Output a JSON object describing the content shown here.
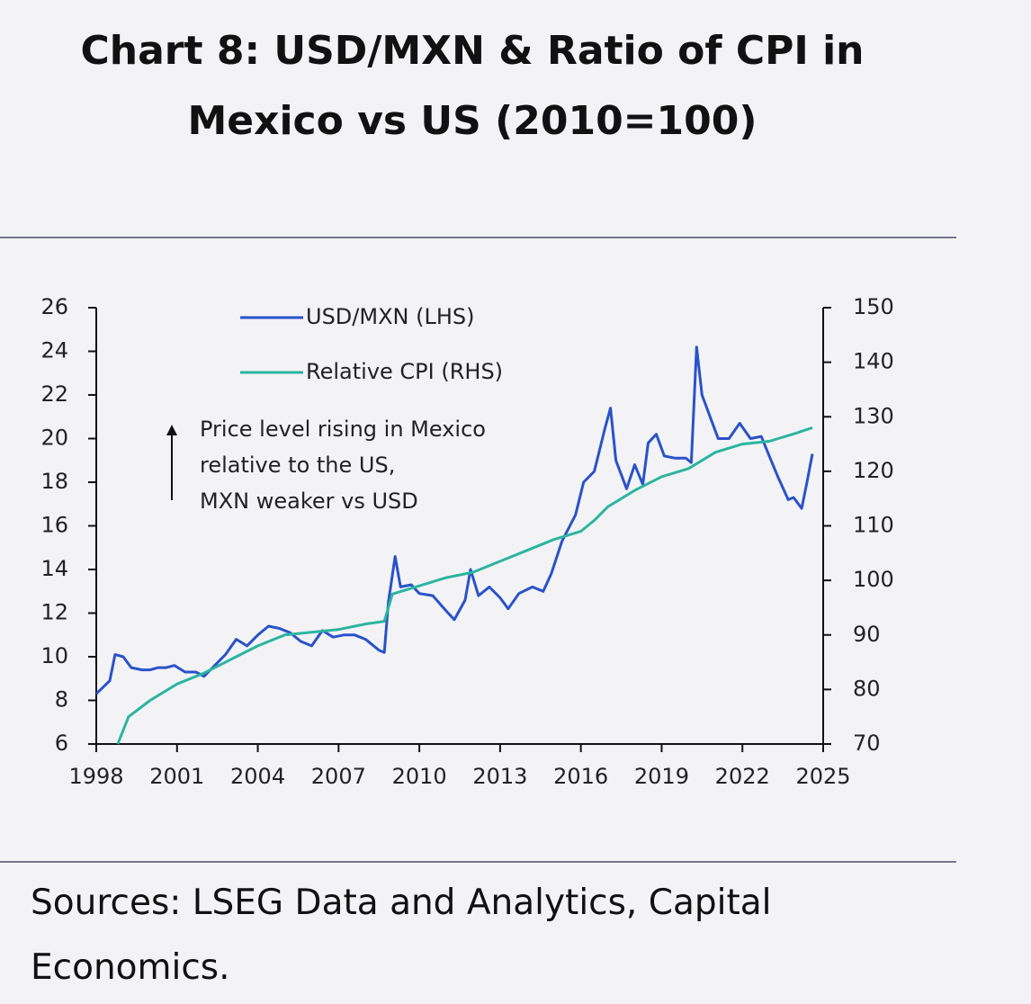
{
  "chart_data": {
    "type": "line",
    "title": "Chart 8: USD/MXN & Ratio of CPI in Mexico vs US (2010=100)",
    "annotation": [
      "Price level rising in Mexico",
      "relative to the US,",
      "MXN weaker vs USD"
    ],
    "source": "Sources: LSEG Data and Analytics, Capital Economics.",
    "xlim": [
      1998,
      2025
    ],
    "xticks": [
      1998,
      2001,
      2004,
      2007,
      2010,
      2013,
      2016,
      2019,
      2022,
      2025
    ],
    "ylim": [
      6,
      26
    ],
    "yticks": [
      6,
      8,
      10,
      12,
      14,
      16,
      18,
      20,
      22,
      24,
      26
    ],
    "y2lim": [
      70,
      150
    ],
    "y2ticks": [
      70,
      80,
      90,
      100,
      110,
      120,
      130,
      140,
      150
    ],
    "grid": false,
    "legend": "top-left",
    "series": [
      {
        "name": "USD/MXN (LHS)",
        "color": "#2a52c9",
        "axis": "y",
        "x": [
          1998.0,
          1998.5,
          1998.7,
          1999.0,
          1999.3,
          1999.7,
          2000.0,
          2000.3,
          2000.6,
          2000.9,
          2001.3,
          2001.7,
          2002.0,
          2002.4,
          2002.8,
          2003.2,
          2003.6,
          2004.0,
          2004.4,
          2004.8,
          2005.2,
          2005.6,
          2006.0,
          2006.4,
          2006.8,
          2007.2,
          2007.6,
          2008.0,
          2008.5,
          2008.7,
          2008.85,
          2009.1,
          2009.3,
          2009.7,
          2010.0,
          2010.5,
          2011.0,
          2011.3,
          2011.7,
          2011.9,
          2012.2,
          2012.6,
          2013.0,
          2013.3,
          2013.7,
          2014.2,
          2014.6,
          2014.9,
          2015.3,
          2015.8,
          2016.1,
          2016.5,
          2016.9,
          2017.1,
          2017.3,
          2017.7,
          2018.0,
          2018.3,
          2018.5,
          2018.8,
          2019.1,
          2019.5,
          2019.9,
          2020.1,
          2020.3,
          2020.5,
          2020.8,
          2021.1,
          2021.5,
          2021.9,
          2022.3,
          2022.7,
          2023.0,
          2023.3,
          2023.7,
          2023.9,
          2024.2,
          2024.4,
          2024.6
        ],
        "values": [
          8.3,
          8.9,
          10.1,
          10.0,
          9.5,
          9.4,
          9.4,
          9.5,
          9.5,
          9.6,
          9.3,
          9.3,
          9.1,
          9.6,
          10.1,
          10.8,
          10.5,
          11.0,
          11.4,
          11.3,
          11.1,
          10.7,
          10.5,
          11.2,
          10.9,
          11.0,
          11.0,
          10.8,
          10.3,
          10.2,
          12.5,
          14.6,
          13.2,
          13.3,
          12.9,
          12.8,
          12.1,
          11.7,
          12.6,
          14.0,
          12.8,
          13.2,
          12.7,
          12.2,
          12.9,
          13.2,
          13.0,
          13.8,
          15.3,
          16.5,
          18.0,
          18.5,
          20.5,
          21.4,
          19.0,
          17.7,
          18.8,
          17.9,
          19.8,
          20.2,
          19.2,
          19.1,
          19.1,
          18.9,
          24.2,
          22.0,
          21.0,
          20.0,
          20.0,
          20.7,
          20.0,
          20.1,
          19.2,
          18.3,
          17.2,
          17.3,
          16.8,
          18.0,
          19.3
        ]
      },
      {
        "name": "Relative CPI (RHS)",
        "color": "#2bb5a0",
        "axis": "y2",
        "x": [
          1998.8,
          1999.2,
          2000.0,
          2001.0,
          2002.0,
          2003.0,
          2004.0,
          2005.0,
          2006.0,
          2007.0,
          2008.0,
          2008.7,
          2009.0,
          2010.0,
          2011.0,
          2012.0,
          2013.0,
          2014.0,
          2015.0,
          2016.0,
          2016.5,
          2017.0,
          2018.0,
          2019.0,
          2020.0,
          2021.0,
          2022.0,
          2023.0,
          2024.0,
          2024.6
        ],
        "values": [
          70,
          75,
          78,
          81,
          83,
          85.5,
          88,
          90,
          90.5,
          91,
          92,
          92.5,
          97.5,
          99,
          100.5,
          101.5,
          103.5,
          105.5,
          107.5,
          109,
          111,
          113.5,
          116.5,
          119,
          120.5,
          123.5,
          125,
          125.5,
          127,
          128
        ]
      }
    ]
  }
}
